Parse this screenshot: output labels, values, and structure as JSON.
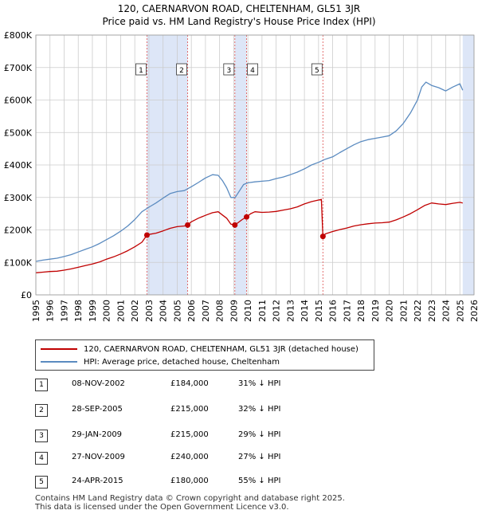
{
  "title": {
    "line1": "120, CAERNARVON ROAD, CHELTENHAM, GL51 3JR",
    "line2": "Price paid vs. HM Land Registry's House Price Index (HPI)"
  },
  "colors": {
    "price": "#c00000",
    "hpi": "#5b8bc0",
    "shade": "#dde6f7",
    "marker_line": "#e06060"
  },
  "chart_data": {
    "type": "line",
    "title": "Price paid vs. HM Land Registry's House Price Index (HPI)",
    "xlim": [
      1995,
      2026
    ],
    "ylim": [
      0,
      800000
    ],
    "x_ticks": [
      "1995",
      "1996",
      "1997",
      "1998",
      "1999",
      "2000",
      "2001",
      "2002",
      "2003",
      "2004",
      "2005",
      "2006",
      "2007",
      "2008",
      "2009",
      "2010",
      "2011",
      "2012",
      "2013",
      "2014",
      "2015",
      "2016",
      "2017",
      "2018",
      "2019",
      "2020",
      "2021",
      "2022",
      "2023",
      "2024",
      "2025",
      "2026"
    ],
    "y_ticks": [
      {
        "value": 0,
        "label": "£0"
      },
      {
        "value": 100000,
        "label": "£100K"
      },
      {
        "value": 200000,
        "label": "£200K"
      },
      {
        "value": 300000,
        "label": "£300K"
      },
      {
        "value": 400000,
        "label": "£400K"
      },
      {
        "value": 500000,
        "label": "£500K"
      },
      {
        "value": 600000,
        "label": "£600K"
      },
      {
        "value": 700000,
        "label": "£700K"
      },
      {
        "value": 800000,
        "label": "£800K"
      }
    ],
    "series": [
      {
        "name": "120, CAERNARVON ROAD, CHELTENHAM, GL51 3JR (detached house)",
        "color": "#c00000",
        "x": [
          1995,
          1995.5,
          1996,
          1996.5,
          1997,
          1997.5,
          1998,
          1998.5,
          1999,
          1999.5,
          2000,
          2000.5,
          2001,
          2001.5,
          2002,
          2002.5,
          2002.86,
          2003,
          2003.5,
          2004,
          2004.5,
          2005,
          2005.5,
          2005.74,
          2006,
          2006.5,
          2007,
          2007.5,
          2007.9,
          2008.2,
          2008.5,
          2008.8,
          2009.08,
          2009.3,
          2009.6,
          2009.91,
          2010.2,
          2010.5,
          2011,
          2011.5,
          2012,
          2012.5,
          2013,
          2013.5,
          2014,
          2014.5,
          2015,
          2015.2,
          2015.31,
          2015.5,
          2016,
          2016.5,
          2017,
          2017.5,
          2018,
          2018.5,
          2019,
          2019.5,
          2020,
          2020.5,
          2021,
          2021.5,
          2022,
          2022.5,
          2023,
          2023.5,
          2024,
          2024.5,
          2025,
          2025.2
        ],
        "values": [
          68000,
          70000,
          72000,
          73000,
          76000,
          80000,
          85000,
          90000,
          95000,
          101000,
          110000,
          117000,
          126000,
          136000,
          148000,
          162000,
          184000,
          186000,
          190000,
          197000,
          205000,
          210000,
          212000,
          215000,
          225000,
          236000,
          245000,
          253000,
          256000,
          246000,
          236000,
          218000,
          215000,
          222000,
          232000,
          240000,
          250000,
          256000,
          254000,
          255000,
          257000,
          261000,
          265000,
          271000,
          280000,
          287000,
          292000,
          294000,
          180000,
          188000,
          195000,
          201000,
          206000,
          212000,
          216000,
          219000,
          221000,
          222000,
          224000,
          231000,
          240000,
          250000,
          262000,
          275000,
          283000,
          280000,
          278000,
          282000,
          285000,
          283000
        ]
      },
      {
        "name": "HPI: Average price, detached house, Cheltenham",
        "color": "#5b8bc0",
        "x": [
          1995,
          1995.5,
          1996,
          1996.5,
          1997,
          1997.5,
          1998,
          1998.5,
          1999,
          1999.5,
          2000,
          2000.5,
          2001,
          2001.5,
          2002,
          2002.5,
          2003,
          2003.5,
          2004,
          2004.5,
          2005,
          2005.5,
          2006,
          2006.5,
          2007,
          2007.5,
          2007.9,
          2008.2,
          2008.5,
          2008.8,
          2009.1,
          2009.4,
          2009.7,
          2010,
          2010.5,
          2011,
          2011.5,
          2012,
          2012.5,
          2013,
          2013.5,
          2014,
          2014.5,
          2015,
          2015.5,
          2016,
          2016.5,
          2017,
          2017.5,
          2018,
          2018.5,
          2019,
          2019.5,
          2020,
          2020.5,
          2021,
          2021.5,
          2022,
          2022.3,
          2022.6,
          2023,
          2023.5,
          2024,
          2024.5,
          2025,
          2025.2
        ],
        "values": [
          103000,
          107000,
          110000,
          113000,
          118000,
          124000,
          132000,
          140000,
          148000,
          158000,
          170000,
          182000,
          196000,
          212000,
          232000,
          256000,
          270000,
          283000,
          298000,
          312000,
          318000,
          321000,
          333000,
          346000,
          360000,
          370000,
          368000,
          352000,
          330000,
          300000,
          300000,
          320000,
          340000,
          345000,
          348000,
          350000,
          352000,
          358000,
          363000,
          370000,
          378000,
          388000,
          400000,
          408000,
          418000,
          425000,
          438000,
          450000,
          462000,
          472000,
          478000,
          482000,
          486000,
          490000,
          505000,
          528000,
          560000,
          600000,
          640000,
          655000,
          645000,
          638000,
          628000,
          640000,
          650000,
          630000
        ]
      }
    ],
    "transactions": [
      {
        "num": "1",
        "x": 2002.86,
        "value": 184000,
        "date": "08-NOV-2002",
        "price": "£184,000",
        "hpi": "31% ↓ HPI"
      },
      {
        "num": "2",
        "x": 2005.74,
        "value": 215000,
        "date": "28-SEP-2005",
        "price": "£215,000",
        "hpi": "32% ↓ HPI"
      },
      {
        "num": "3",
        "x": 2009.08,
        "value": 215000,
        "date": "29-JAN-2009",
        "price": "£215,000",
        "hpi": "29% ↓ HPI"
      },
      {
        "num": "4",
        "x": 2009.91,
        "value": 240000,
        "date": "27-NOV-2009",
        "price": "£240,000",
        "hpi": "27% ↓ HPI"
      },
      {
        "num": "5",
        "x": 2015.31,
        "value": 180000,
        "date": "24-APR-2015",
        "price": "£180,000",
        "hpi": "55% ↓ HPI"
      }
    ],
    "shaded_ranges": [
      [
        2002.86,
        2005.74
      ],
      [
        2009.08,
        2009.91
      ],
      [
        2025.2,
        2026
      ]
    ]
  },
  "legend": {
    "price_label": "120, CAERNARVON ROAD, CHELTENHAM, GL51 3JR (detached house)",
    "hpi_label": "HPI: Average price, detached house, Cheltenham"
  },
  "footer": {
    "line1": "Contains HM Land Registry data © Crown copyright and database right 2025.",
    "line2": "This data is licensed under the Open Government Licence v3.0."
  }
}
